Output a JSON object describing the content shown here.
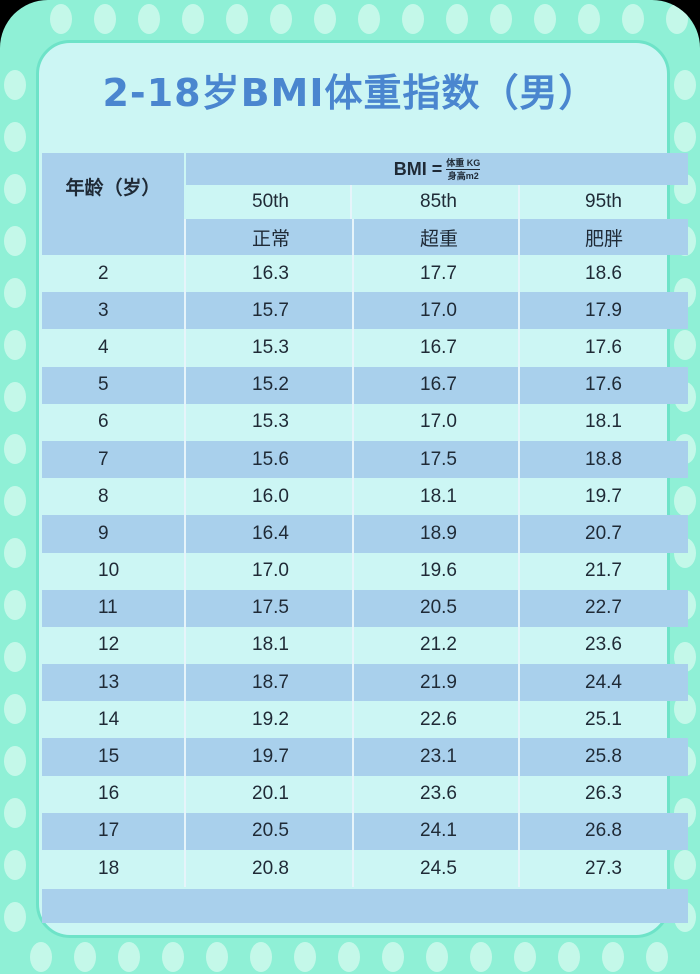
{
  "title": "2-18岁BMI体重指数（男）",
  "header": {
    "age_label": "年龄（岁）",
    "bmi_label": "BMI =",
    "bmi_numerator": "体重 KG",
    "bmi_denominator": "身高m2",
    "percentiles": [
      "50th",
      "85th",
      "95th"
    ],
    "categories": [
      "正常",
      "超重",
      "肥胖"
    ]
  },
  "rows": [
    {
      "age": "2",
      "p50": "16.3",
      "p85": "17.7",
      "p95": "18.6"
    },
    {
      "age": "3",
      "p50": "15.7",
      "p85": "17.0",
      "p95": "17.9"
    },
    {
      "age": "4",
      "p50": "15.3",
      "p85": "16.7",
      "p95": "17.6"
    },
    {
      "age": "5",
      "p50": "15.2",
      "p85": "16.7",
      "p95": "17.6"
    },
    {
      "age": "6",
      "p50": "15.3",
      "p85": "17.0",
      "p95": "18.1"
    },
    {
      "age": "7",
      "p50": "15.6",
      "p85": "17.5",
      "p95": "18.8"
    },
    {
      "age": "8",
      "p50": "16.0",
      "p85": "18.1",
      "p95": "19.7"
    },
    {
      "age": "9",
      "p50": "16.4",
      "p85": "18.9",
      "p95": "20.7"
    },
    {
      "age": "10",
      "p50": "17.0",
      "p85": "19.6",
      "p95": "21.7"
    },
    {
      "age": "11",
      "p50": "17.5",
      "p85": "20.5",
      "p95": "22.7"
    },
    {
      "age": "12",
      "p50": "18.1",
      "p85": "21.2",
      "p95": "23.6"
    },
    {
      "age": "13",
      "p50": "18.7",
      "p85": "21.9",
      "p95": "24.4"
    },
    {
      "age": "14",
      "p50": "19.2",
      "p85": "22.6",
      "p95": "25.1"
    },
    {
      "age": "15",
      "p50": "19.7",
      "p85": "23.1",
      "p95": "25.8"
    },
    {
      "age": "16",
      "p50": "20.1",
      "p85": "23.6",
      "p95": "26.3"
    },
    {
      "age": "17",
      "p50": "20.5",
      "p85": "24.1",
      "p95": "26.8"
    },
    {
      "age": "18",
      "p50": "20.8",
      "p85": "24.5",
      "p95": "27.3"
    }
  ],
  "colors": {
    "frame": "#8ff0d6",
    "panel": "#ccf6f4",
    "title": "#4a86cf",
    "band": "#a9d0ec"
  }
}
